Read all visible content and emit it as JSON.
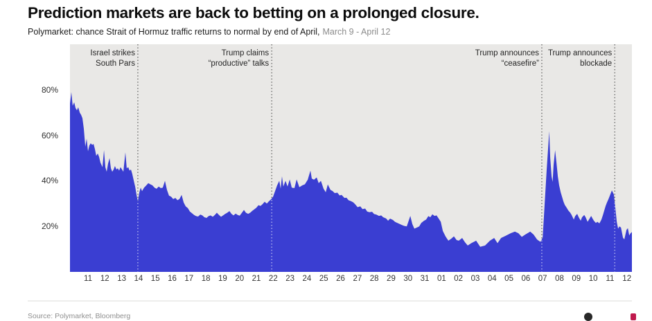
{
  "chart_data": {
    "type": "area",
    "title": "Prediction markets are back to betting on a prolonged closure.",
    "subtitle": "Polymarket: chance Strait of Hormuz traffic returns to normal by end of April,",
    "subtitle_range": "March 9 - April 12",
    "ylim": [
      0,
      100
    ],
    "yticks": [
      20,
      40,
      60,
      80
    ],
    "ytick_suffix": "%",
    "xtick_labels": [
      "11",
      "12",
      "13",
      "14",
      "15",
      "16",
      "17",
      "18",
      "19",
      "20",
      "21",
      "22",
      "23",
      "24",
      "25",
      "26",
      "27",
      "28",
      "29",
      "30",
      "31",
      "01",
      "02",
      "03",
      "04",
      "05",
      "06",
      "07",
      "08",
      "09",
      "10",
      "11",
      "12"
    ],
    "x_domain_days": [
      -1.07,
      32.3
    ],
    "annotations": [
      {
        "day": 2.96,
        "lines": [
          "Israel strikes",
          "South Pars"
        ]
      },
      {
        "day": 10.91,
        "lines": [
          "Trump claims",
          "“productive” talks"
        ]
      },
      {
        "day": 26.95,
        "lines": [
          "Trump announces",
          "“ceasefire”"
        ]
      },
      {
        "day": 31.28,
        "lines": [
          "Trump announces",
          "blockade"
        ]
      }
    ],
    "series": [
      {
        "name": "Chance Strait of Hormuz traffic returns to normal by end of April",
        "points": [
          [
            -1.07,
            74
          ],
          [
            -0.99,
            79
          ],
          [
            -0.91,
            73
          ],
          [
            -0.82,
            74.5
          ],
          [
            -0.74,
            72
          ],
          [
            -0.66,
            71
          ],
          [
            -0.58,
            72.3
          ],
          [
            -0.49,
            70
          ],
          [
            -0.41,
            69
          ],
          [
            -0.33,
            67.5
          ],
          [
            -0.25,
            63
          ],
          [
            -0.16,
            55
          ],
          [
            -0.08,
            58.5
          ],
          [
            0,
            53
          ],
          [
            0.08,
            55.5
          ],
          [
            0.16,
            56.5
          ],
          [
            0.25,
            55.8
          ],
          [
            0.33,
            56.2
          ],
          [
            0.41,
            54
          ],
          [
            0.49,
            51
          ],
          [
            0.58,
            52
          ],
          [
            0.66,
            50.5
          ],
          [
            0.74,
            48
          ],
          [
            0.86,
            46
          ],
          [
            0.95,
            53.5
          ],
          [
            1.03,
            46
          ],
          [
            1.11,
            44
          ],
          [
            1.19,
            47.5
          ],
          [
            1.28,
            50
          ],
          [
            1.36,
            45.5
          ],
          [
            1.44,
            44
          ],
          [
            1.52,
            45
          ],
          [
            1.6,
            46.5
          ],
          [
            1.69,
            45
          ],
          [
            1.77,
            45.5
          ],
          [
            1.85,
            44.5
          ],
          [
            1.93,
            46
          ],
          [
            2.02,
            45
          ],
          [
            2.1,
            44
          ],
          [
            2.22,
            52.5
          ],
          [
            2.3,
            45.5
          ],
          [
            2.39,
            46
          ],
          [
            2.47,
            44.5
          ],
          [
            2.55,
            45
          ],
          [
            2.63,
            43
          ],
          [
            2.72,
            40
          ],
          [
            2.8,
            37.5
          ],
          [
            2.88,
            34
          ],
          [
            2.96,
            31
          ],
          [
            3.05,
            35
          ],
          [
            3.13,
            37
          ],
          [
            3.21,
            35.5
          ],
          [
            3.33,
            37
          ],
          [
            3.46,
            38
          ],
          [
            3.58,
            39
          ],
          [
            3.7,
            38.5
          ],
          [
            3.83,
            38
          ],
          [
            3.95,
            37
          ],
          [
            4.07,
            36.5
          ],
          [
            4.2,
            37.5
          ],
          [
            4.32,
            36.8
          ],
          [
            4.44,
            37
          ],
          [
            4.57,
            40
          ],
          [
            4.69,
            36
          ],
          [
            4.81,
            33.5
          ],
          [
            4.94,
            33
          ],
          [
            5.06,
            32
          ],
          [
            5.19,
            32.5
          ],
          [
            5.31,
            31.5
          ],
          [
            5.43,
            32
          ],
          [
            5.56,
            33.8
          ],
          [
            5.68,
            30.5
          ],
          [
            5.8,
            28.8
          ],
          [
            5.93,
            28
          ],
          [
            6.05,
            26.5
          ],
          [
            6.17,
            25.8
          ],
          [
            6.3,
            25
          ],
          [
            6.42,
            24.5
          ],
          [
            6.54,
            24.3
          ],
          [
            6.67,
            25.2
          ],
          [
            6.79,
            24.8
          ],
          [
            6.91,
            24
          ],
          [
            7.04,
            23.7
          ],
          [
            7.16,
            24.5
          ],
          [
            7.28,
            24.8
          ],
          [
            7.41,
            24.2
          ],
          [
            7.53,
            25
          ],
          [
            7.65,
            26
          ],
          [
            7.78,
            25
          ],
          [
            7.9,
            24.2
          ],
          [
            8.02,
            24.8
          ],
          [
            8.15,
            25.5
          ],
          [
            8.27,
            26
          ],
          [
            8.4,
            26.7
          ],
          [
            8.52,
            25.5
          ],
          [
            8.64,
            24.8
          ],
          [
            8.77,
            25.6
          ],
          [
            8.89,
            25
          ],
          [
            9.01,
            24.7
          ],
          [
            9.14,
            26
          ],
          [
            9.26,
            27.2
          ],
          [
            9.38,
            26
          ],
          [
            9.51,
            25.5
          ],
          [
            9.63,
            26
          ],
          [
            9.75,
            26.8
          ],
          [
            9.88,
            27.5
          ],
          [
            10,
            28.2
          ],
          [
            10.12,
            29.3
          ],
          [
            10.25,
            29
          ],
          [
            10.37,
            29.8
          ],
          [
            10.49,
            30.8
          ],
          [
            10.62,
            30
          ],
          [
            10.74,
            31
          ],
          [
            10.86,
            31.8
          ],
          [
            10.99,
            33
          ],
          [
            11.11,
            35.5
          ],
          [
            11.23,
            38
          ],
          [
            11.36,
            40
          ],
          [
            11.44,
            36.6
          ],
          [
            11.52,
            42
          ],
          [
            11.6,
            37.5
          ],
          [
            11.73,
            40
          ],
          [
            11.85,
            37.5
          ],
          [
            11.98,
            40.6
          ],
          [
            12.1,
            37
          ],
          [
            12.26,
            36.8
          ],
          [
            12.39,
            40.6
          ],
          [
            12.55,
            37.2
          ],
          [
            12.72,
            38
          ],
          [
            12.88,
            38.5
          ],
          [
            13.05,
            40.5
          ],
          [
            13.21,
            44.5
          ],
          [
            13.29,
            41
          ],
          [
            13.42,
            40.5
          ],
          [
            13.58,
            41.5
          ],
          [
            13.7,
            39
          ],
          [
            13.83,
            40
          ],
          [
            13.99,
            36.5
          ],
          [
            14.12,
            35
          ],
          [
            14.24,
            38.4
          ],
          [
            14.4,
            36
          ],
          [
            14.53,
            35.5
          ],
          [
            14.65,
            34.6
          ],
          [
            14.81,
            34.8
          ],
          [
            14.94,
            33.6
          ],
          [
            15.06,
            33.8
          ],
          [
            15.23,
            32.5
          ],
          [
            15.35,
            32.6
          ],
          [
            15.47,
            31.5
          ],
          [
            15.64,
            31
          ],
          [
            15.76,
            30.5
          ],
          [
            15.88,
            29.6
          ],
          [
            16.01,
            28.4
          ],
          [
            16.17,
            28.8
          ],
          [
            16.3,
            27.6
          ],
          [
            16.46,
            27.8
          ],
          [
            16.58,
            26.5
          ],
          [
            16.71,
            26.2
          ],
          [
            16.87,
            26.4
          ],
          [
            16.99,
            25.4
          ],
          [
            17.12,
            25.2
          ],
          [
            17.28,
            24.6
          ],
          [
            17.41,
            24.8
          ],
          [
            17.53,
            24
          ],
          [
            17.7,
            23.5
          ],
          [
            17.82,
            22.5
          ],
          [
            17.94,
            23.4
          ],
          [
            18.11,
            22.8
          ],
          [
            18.23,
            22
          ],
          [
            18.35,
            21.6
          ],
          [
            18.52,
            21
          ],
          [
            18.64,
            20.6
          ],
          [
            18.77,
            20.2
          ],
          [
            18.93,
            20
          ],
          [
            19.14,
            24.6
          ],
          [
            19.26,
            21
          ],
          [
            19.38,
            19
          ],
          [
            19.51,
            19.4
          ],
          [
            19.67,
            20
          ],
          [
            19.79,
            21.5
          ],
          [
            19.96,
            22.5
          ],
          [
            20.08,
            23
          ],
          [
            20.21,
            24.5
          ],
          [
            20.33,
            24
          ],
          [
            20.45,
            25.3
          ],
          [
            20.58,
            24.6
          ],
          [
            20.7,
            24.8
          ],
          [
            20.82,
            23.5
          ],
          [
            20.95,
            22
          ],
          [
            21.07,
            18
          ],
          [
            21.23,
            15.6
          ],
          [
            21.4,
            13.7
          ],
          [
            21.56,
            14.5
          ],
          [
            21.73,
            15.6
          ],
          [
            21.89,
            14
          ],
          [
            22.02,
            13.7
          ],
          [
            22.22,
            14.9
          ],
          [
            22.39,
            13
          ],
          [
            22.55,
            11.6
          ],
          [
            22.76,
            12.6
          ],
          [
            23.05,
            13.7
          ],
          [
            23.29,
            11
          ],
          [
            23.58,
            11.6
          ],
          [
            23.87,
            13.7
          ],
          [
            24.12,
            14.9
          ],
          [
            24.32,
            12.6
          ],
          [
            24.53,
            14.9
          ],
          [
            24.81,
            15.9
          ],
          [
            25.1,
            17
          ],
          [
            25.35,
            17.7
          ],
          [
            25.56,
            17
          ],
          [
            25.76,
            15.4
          ],
          [
            25.97,
            16.4
          ],
          [
            26.26,
            17.7
          ],
          [
            26.46,
            16.4
          ],
          [
            26.67,
            14.2
          ],
          [
            26.87,
            13.2
          ],
          [
            27,
            15
          ],
          [
            27.12,
            30
          ],
          [
            27.24,
            45
          ],
          [
            27.33,
            55
          ],
          [
            27.39,
            61.8
          ],
          [
            27.45,
            50
          ],
          [
            27.53,
            42
          ],
          [
            27.59,
            39.5
          ],
          [
            27.65,
            47
          ],
          [
            27.74,
            53.5
          ],
          [
            27.82,
            48
          ],
          [
            27.9,
            42
          ],
          [
            27.98,
            38
          ],
          [
            28.07,
            35
          ],
          [
            28.15,
            33
          ],
          [
            28.23,
            31
          ],
          [
            28.31,
            29.5
          ],
          [
            28.44,
            28
          ],
          [
            28.52,
            27
          ],
          [
            28.64,
            26
          ],
          [
            28.72,
            25
          ],
          [
            28.85,
            23
          ],
          [
            28.93,
            24.5
          ],
          [
            29.05,
            25.5
          ],
          [
            29.14,
            24
          ],
          [
            29.26,
            22.5
          ],
          [
            29.34,
            24
          ],
          [
            29.47,
            25
          ],
          [
            29.55,
            24
          ],
          [
            29.67,
            22
          ],
          [
            29.75,
            23
          ],
          [
            29.88,
            24.6
          ],
          [
            29.96,
            23.5
          ],
          [
            30.04,
            22.5
          ],
          [
            30.16,
            21.5
          ],
          [
            30.25,
            22
          ],
          [
            30.37,
            21.3
          ],
          [
            30.49,
            23
          ],
          [
            30.58,
            25
          ],
          [
            30.66,
            27
          ],
          [
            30.74,
            29
          ],
          [
            30.82,
            30.5
          ],
          [
            30.91,
            32
          ],
          [
            30.99,
            33.5
          ],
          [
            31.11,
            35.8
          ],
          [
            31.23,
            34
          ],
          [
            31.32,
            28
          ],
          [
            31.4,
            22
          ],
          [
            31.48,
            19
          ],
          [
            31.56,
            20
          ],
          [
            31.65,
            19.5
          ],
          [
            31.77,
            15
          ],
          [
            31.85,
            14.3
          ],
          [
            31.98,
            18.5
          ],
          [
            32.06,
            19.2
          ],
          [
            32.14,
            16
          ],
          [
            32.22,
            17
          ],
          [
            32.3,
            17.5
          ]
        ]
      }
    ],
    "colors": {
      "area": "#3a3ed2",
      "plot_bg": "#e9e8e6",
      "event_line": "#3d3d3d",
      "event_line_on_area": "#ffffff"
    },
    "legend": "none",
    "grid": "off"
  },
  "footer": {
    "source": "Source: Polymarket, Bloomberg"
  }
}
